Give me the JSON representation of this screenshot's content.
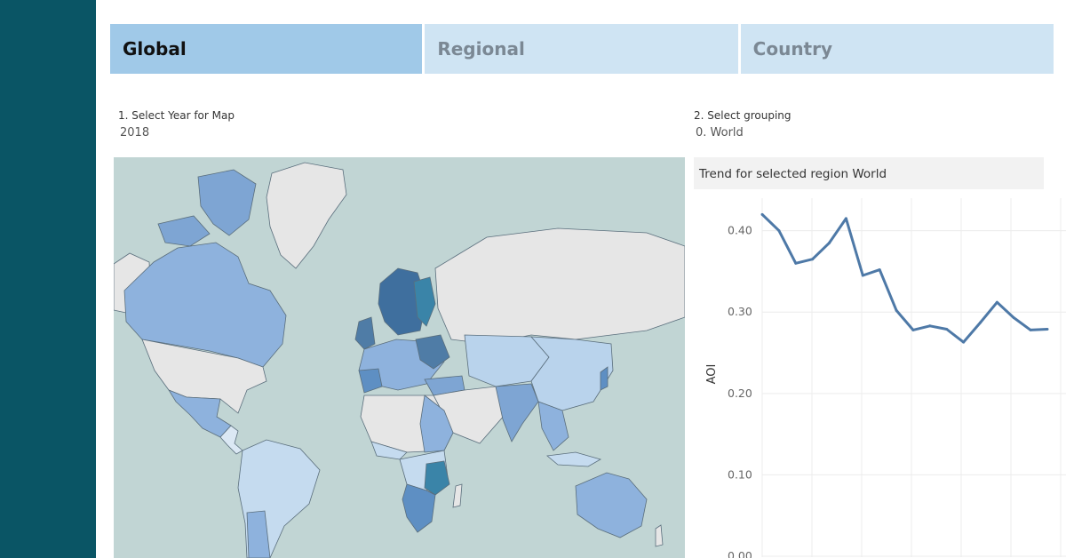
{
  "tabs": [
    {
      "label": "Global",
      "active": true
    },
    {
      "label": "Regional",
      "active": false
    },
    {
      "label": "Country",
      "active": false
    }
  ],
  "controls": {
    "year": {
      "label": "1. Select Year for Map",
      "value": "2018"
    },
    "grouping": {
      "label": "2. Select grouping",
      "value": "0. World"
    }
  },
  "trend": {
    "title": "Trend for selected region World"
  },
  "colors": {
    "sidebar": "#0a5565",
    "tab_active": "#a0c9e8",
    "tab_inactive": "#cfe4f3",
    "ocean": "#c1d5d4",
    "land_nodata": "#e3e3e3",
    "line": "#4e79a7"
  },
  "chart_data": {
    "type": "line",
    "title": "Trend for selected region World",
    "xlabel": "",
    "ylabel": "AOI",
    "ylim": [
      0,
      0.44
    ],
    "yticks": [
      "0.00",
      "0.10",
      "0.20",
      "0.30",
      "0.40"
    ],
    "grid": true,
    "series": [
      {
        "values": [
          0.42,
          0.4,
          0.36,
          0.365,
          0.385,
          0.415,
          0.345,
          0.352,
          0.302,
          0.278,
          0.283,
          0.279,
          0.263,
          0.287,
          0.312,
          0.293,
          0.278,
          0.279
        ]
      }
    ]
  }
}
